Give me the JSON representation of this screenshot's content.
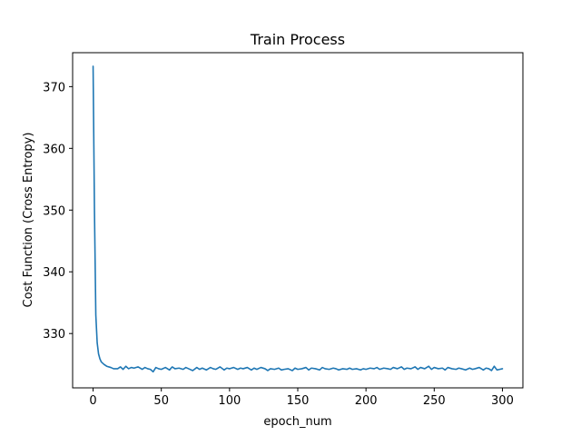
{
  "chart_data": {
    "type": "line",
    "title": "Train Process",
    "xlabel": "epoch_num",
    "ylabel": "Cost Function (Cross Entropy)",
    "xlim": [
      -15,
      315
    ],
    "ylim": [
      321.2,
      375.5
    ],
    "xticks": [
      0,
      50,
      100,
      150,
      200,
      250,
      300
    ],
    "yticks": [
      330,
      340,
      350,
      360,
      370
    ],
    "grid": false,
    "legend": "none",
    "series": [
      {
        "color": "#1f77b4",
        "x": [
          0,
          1,
          2,
          3,
          4,
          5,
          6,
          8,
          10,
          13,
          15,
          18,
          20,
          22,
          24,
          26,
          28,
          30,
          33,
          36,
          38,
          40,
          42,
          44,
          46,
          48,
          50,
          53,
          56,
          58,
          60,
          63,
          66,
          68,
          70,
          73,
          76,
          78,
          80,
          83,
          86,
          88,
          90,
          93,
          96,
          98,
          100,
          103,
          106,
          108,
          110,
          113,
          116,
          118,
          120,
          123,
          126,
          128,
          130,
          133,
          136,
          138,
          140,
          143,
          146,
          148,
          150,
          153,
          156,
          158,
          160,
          163,
          166,
          168,
          170,
          173,
          176,
          178,
          180,
          183,
          186,
          188,
          190,
          193,
          196,
          198,
          200,
          203,
          206,
          208,
          210,
          213,
          216,
          218,
          220,
          223,
          226,
          228,
          230,
          233,
          236,
          238,
          240,
          243,
          246,
          248,
          250,
          253,
          256,
          258,
          260,
          263,
          266,
          268,
          270,
          273,
          276,
          278,
          280,
          283,
          286,
          288,
          290,
          292,
          294,
          296,
          298,
          300
        ],
        "y": [
          373.3,
          350.0,
          333.0,
          328.5,
          326.7,
          325.9,
          325.4,
          325.0,
          324.7,
          324.5,
          324.3,
          324.3,
          324.6,
          324.2,
          324.7,
          324.3,
          324.5,
          324.4,
          324.6,
          324.2,
          324.5,
          324.3,
          324.2,
          323.8,
          324.5,
          324.3,
          324.2,
          324.5,
          324.1,
          324.6,
          324.3,
          324.4,
          324.2,
          324.5,
          324.3,
          324.0,
          324.5,
          324.2,
          324.4,
          324.1,
          324.5,
          324.3,
          324.2,
          324.6,
          324.1,
          324.4,
          324.3,
          324.5,
          324.2,
          324.4,
          324.3,
          324.5,
          324.1,
          324.4,
          324.2,
          324.5,
          324.3,
          324.0,
          324.3,
          324.2,
          324.4,
          324.1,
          324.2,
          324.3,
          324.0,
          324.4,
          324.2,
          324.3,
          324.5,
          324.1,
          324.4,
          324.3,
          324.1,
          324.5,
          324.3,
          324.2,
          324.4,
          324.3,
          324.1,
          324.3,
          324.2,
          324.4,
          324.2,
          324.3,
          324.1,
          324.3,
          324.2,
          324.4,
          324.3,
          324.5,
          324.2,
          324.4,
          324.3,
          324.2,
          324.5,
          324.3,
          324.6,
          324.2,
          324.4,
          324.3,
          324.6,
          324.2,
          324.5,
          324.3,
          324.7,
          324.2,
          324.5,
          324.3,
          324.4,
          324.1,
          324.5,
          324.3,
          324.2,
          324.4,
          324.3,
          324.1,
          324.4,
          324.2,
          324.3,
          324.5,
          324.1,
          324.4,
          324.3,
          324.0,
          324.7,
          324.1,
          324.2,
          324.3
        ]
      }
    ]
  }
}
